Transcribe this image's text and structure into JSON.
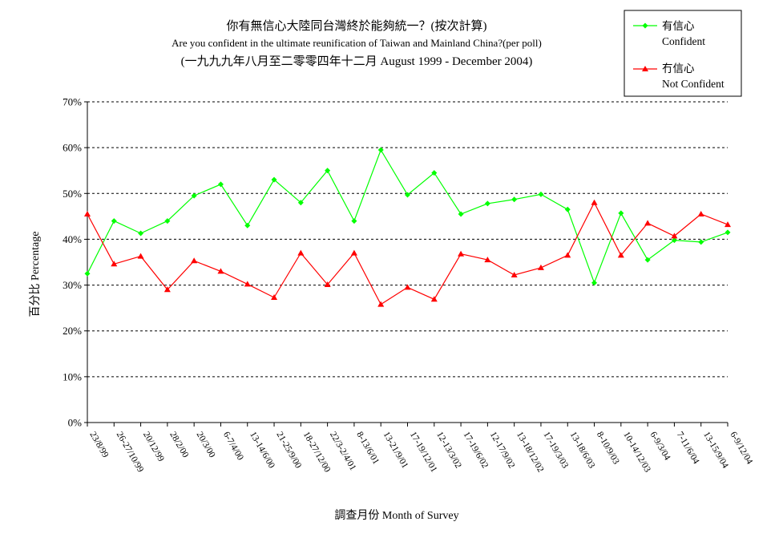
{
  "chart_data": {
    "type": "line",
    "title": "你有無信心大陸同台灣終於能夠統一？(按次計算)",
    "subtitle": "Are you confident in the ultimate reunification of Taiwan and Mainland China?(per poll)",
    "subtitle2": "(一九九九年八月至二零零四年十二月 August 1999 - December 2004)",
    "xlabel": "調查月份 Month of Survey",
    "ylabel": "百分比 Percentage",
    "ylim": [
      0,
      70
    ],
    "yticks": [
      "0%",
      "10%",
      "20%",
      "30%",
      "40%",
      "50%",
      "60%",
      "70%"
    ],
    "grid": true,
    "legend_position": "top-right",
    "categories": [
      "23/8/99",
      "26-27/10/99",
      "20/12/99",
      "28/2/00",
      "20/3/00",
      "6-7/4/00",
      "13-14/6/00",
      "21-25/9/00",
      "18-27/12/00",
      "22/3-2/4/01",
      "8-13/6/01",
      "13-21/9/01",
      "17-19/12/01",
      "12-13/3/02",
      "17-19/6/02",
      "12-17/9/02",
      "13-18/12/02",
      "17-19/3/03",
      "13-18/6/03",
      "8-10/9/03",
      "10-14/12/03",
      "6-9/3/04",
      "7-11/6/04",
      "13-15/9/04",
      "6-9/12/04"
    ],
    "series": [
      {
        "name": "有信心",
        "name_en": "Confident",
        "color": "#00ff00",
        "marker": "diamond",
        "values": [
          32.5,
          44,
          41.3,
          44,
          49.5,
          52,
          43,
          53,
          48,
          55,
          44,
          59.5,
          49.7,
          54.5,
          45.5,
          47.8,
          48.7,
          49.8,
          46.5,
          30.5,
          45.7,
          35.5,
          39.8,
          39.4,
          41.5
        ]
      },
      {
        "name": "冇信心",
        "name_en": "Not Confident",
        "color": "#ff0000",
        "marker": "triangle",
        "values": [
          45.5,
          34.6,
          36.3,
          29,
          35.3,
          33,
          30.2,
          27.3,
          37,
          30.1,
          37,
          25.8,
          29.5,
          26.9,
          36.8,
          35.5,
          32.2,
          33.8,
          36.5,
          48,
          36.5,
          43.5,
          40.7,
          45.5,
          43.2
        ]
      }
    ]
  }
}
